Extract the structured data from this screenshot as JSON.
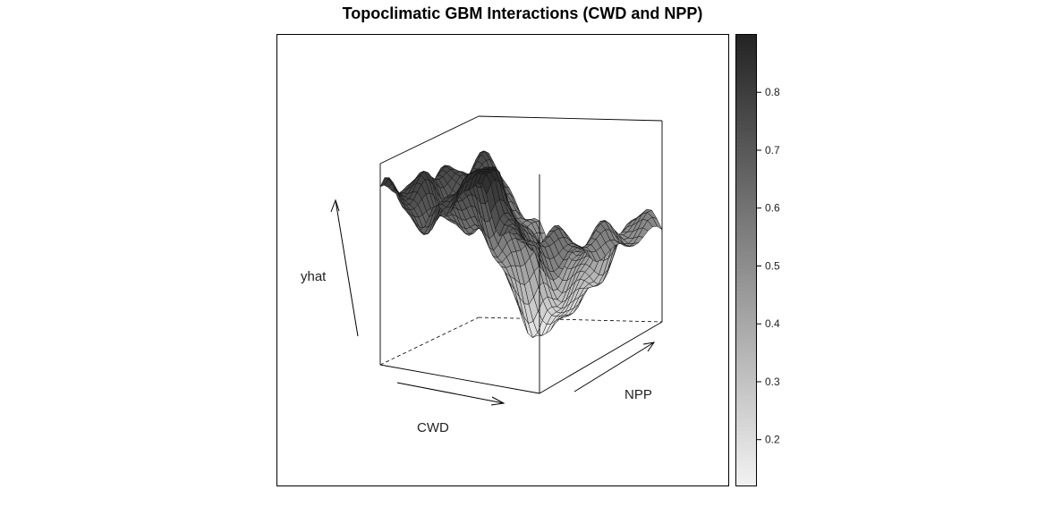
{
  "chart_data": {
    "type": "surface3d",
    "title": "Topoclimatic GBM Interactions (CWD and NPP)",
    "xlabel": "CWD",
    "ylabel": "NPP",
    "zlabel": "yhat",
    "zlim": [
      0.12,
      0.9
    ],
    "colorbar": {
      "ticks": [
        0.2,
        0.3,
        0.4,
        0.5,
        0.6,
        0.7,
        0.8
      ],
      "tick_labels": [
        "0.2",
        "0.3",
        "0.4",
        "0.5",
        "0.6",
        "0.7",
        "0.8"
      ],
      "range": [
        0.12,
        0.9
      ],
      "color_low": "#f2f2f2",
      "color_high": "#232323"
    },
    "surface_profiles": {
      "cwd_samples": 36,
      "npp_samples": 26,
      "high_cwd_low_npp_yhat": 0.87,
      "low_cwd_yhat": 0.75,
      "trough_yhat": 0.2
    }
  }
}
